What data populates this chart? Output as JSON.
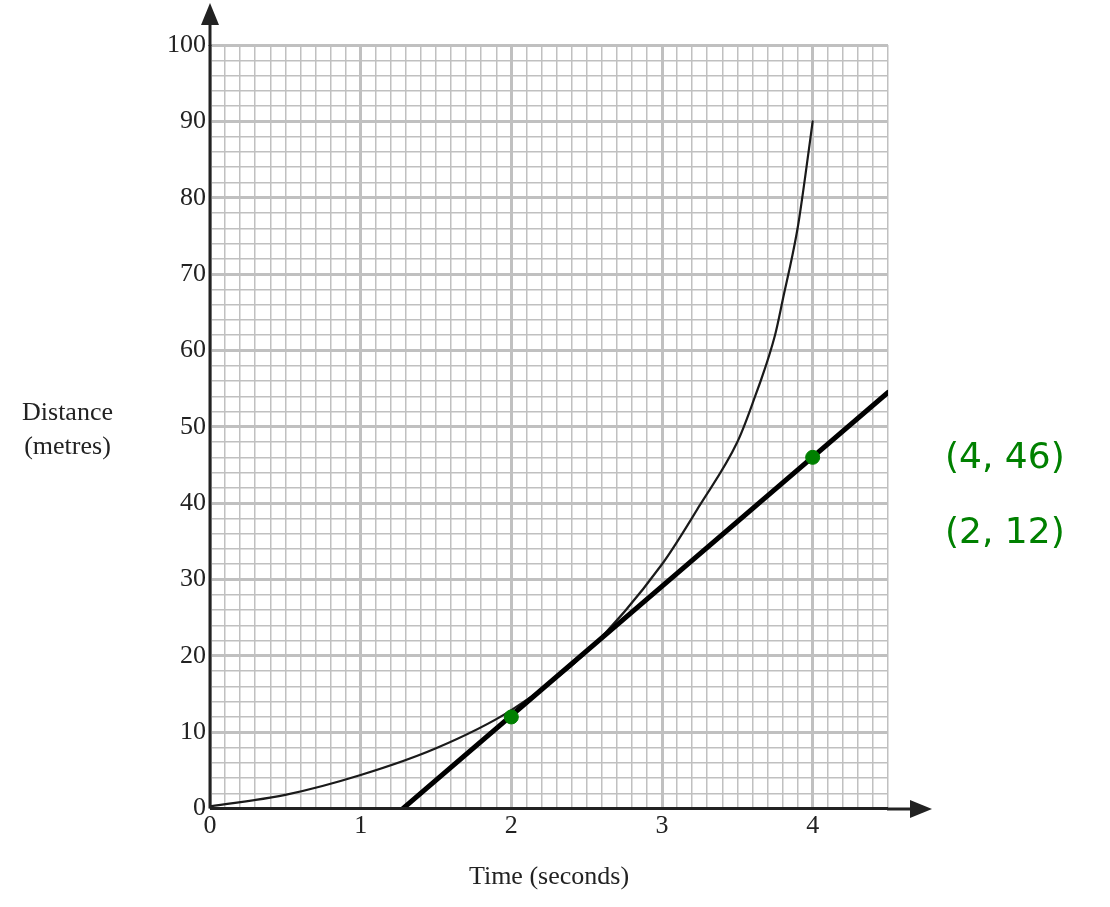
{
  "chart_data": {
    "type": "line",
    "xlabel": "Time (seconds)",
    "ylabel": "Distance (metres)",
    "xlim": [
      0,
      4.5
    ],
    "ylim": [
      0,
      100
    ],
    "xticks": [
      0,
      {
        "value": 0.1,
        "label": null
      },
      {
        "value": 0.2,
        "label": null
      },
      {
        "value": 0.3,
        "label": null
      },
      {
        "value": 0.4,
        "label": null
      },
      {
        "value": 0.5,
        "label": null
      },
      {
        "value": 0.6,
        "label": null
      },
      {
        "value": 0.7,
        "label": null
      },
      {
        "value": 0.8,
        "label": null
      },
      {
        "value": 0.9,
        "label": null
      },
      1,
      {
        "value": 1.1,
        "label": null
      },
      {
        "value": 1.2,
        "label": null
      },
      {
        "value": 1.3,
        "label": null
      },
      {
        "value": 1.4,
        "label": null
      },
      {
        "value": 1.5,
        "label": null
      },
      {
        "value": 1.6,
        "label": null
      },
      {
        "value": 1.7,
        "label": null
      },
      {
        "value": 1.8,
        "label": null
      },
      {
        "value": 1.9,
        "label": null
      },
      2,
      {
        "value": 2.1,
        "label": null
      },
      {
        "value": 2.2,
        "label": null
      },
      {
        "value": 2.3,
        "label": null
      },
      {
        "value": 2.4,
        "label": null
      },
      {
        "value": 2.5,
        "label": null
      },
      {
        "value": 2.6,
        "label": null
      },
      {
        "value": 2.7,
        "label": null
      },
      {
        "value": 2.8,
        "label": null
      },
      {
        "value": 2.9,
        "label": null
      },
      3,
      {
        "value": 3.1,
        "label": null
      },
      {
        "value": 3.2,
        "label": null
      },
      {
        "value": 3.3,
        "label": null
      },
      {
        "value": 3.4,
        "label": null
      },
      {
        "value": 3.5,
        "label": null
      },
      {
        "value": 3.6,
        "label": null
      },
      {
        "value": 3.7,
        "label": null
      },
      {
        "value": 3.8,
        "label": null
      },
      {
        "value": 3.9,
        "label": null
      },
      4,
      {
        "value": 4.1,
        "label": null
      },
      {
        "value": 4.2,
        "label": null
      },
      {
        "value": 4.3,
        "label": null
      },
      {
        "value": 4.4,
        "label": null
      },
      {
        "value": 4.5,
        "label": null
      }
    ],
    "yticks": [
      0,
      {
        "value": 2,
        "label": null
      },
      {
        "value": 4,
        "label": null
      },
      {
        "value": 6,
        "label": null
      },
      {
        "value": 8,
        "label": null
      },
      10,
      {
        "value": 12,
        "label": null
      },
      {
        "value": 14,
        "label": null
      },
      {
        "value": 16,
        "label": null
      },
      {
        "value": 18,
        "label": null
      },
      20,
      {
        "value": 22,
        "label": null
      },
      {
        "value": 24,
        "label": null
      },
      {
        "value": 26,
        "label": null
      },
      {
        "value": 28,
        "label": null
      },
      30,
      {
        "value": 32,
        "label": null
      },
      {
        "value": 34,
        "label": null
      },
      {
        "value": 36,
        "label": null
      },
      {
        "value": 38,
        "label": null
      },
      40,
      {
        "value": 42,
        "label": null
      },
      {
        "value": 44,
        "label": null
      },
      {
        "value": 46,
        "label": null
      },
      {
        "value": 48,
        "label": null
      },
      50,
      {
        "value": 52,
        "label": null
      },
      {
        "value": 54,
        "label": null
      },
      {
        "value": 56,
        "label": null
      },
      {
        "value": 58,
        "label": null
      },
      60,
      {
        "value": 62,
        "label": null
      },
      {
        "value": 64,
        "label": null
      },
      {
        "value": 66,
        "label": null
      },
      {
        "value": 68,
        "label": null
      },
      70,
      {
        "value": 72,
        "label": null
      },
      {
        "value": 74,
        "label": null
      },
      {
        "value": 76,
        "label": null
      },
      {
        "value": 78,
        "label": null
      },
      80,
      {
        "value": 82,
        "label": null
      },
      {
        "value": 84,
        "label": null
      },
      {
        "value": 86,
        "label": null
      },
      {
        "value": 88,
        "label": null
      },
      90,
      {
        "value": 92,
        "label": null
      },
      {
        "value": 94,
        "label": null
      },
      {
        "value": 96,
        "label": null
      },
      {
        "value": 98,
        "label": null
      },
      100
    ],
    "grid": true,
    "series": [
      {
        "color": "#1a1a1a",
        "marker": "none",
        "x": [
          0,
          0.5,
          1,
          1.5,
          2,
          2.5,
          3,
          3.25,
          3.5,
          3.6,
          3.75,
          3.8,
          3.9,
          3.95,
          4
        ],
        "values": [
          0.3,
          1.8,
          4.4,
          7.9,
          12.9,
          20.5,
          32,
          39.7,
          48,
          53,
          62,
          66.5,
          76,
          82.7,
          90
        ]
      },
      {
        "color": "#000000",
        "marker": "none",
        "x": [
          1.28,
          4.5
        ],
        "values": [
          0,
          54.5
        ]
      },
      {
        "type": "scatter",
        "color": "#008000",
        "marker": "circle",
        "x": [
          2,
          4
        ],
        "values": [
          12,
          46
        ]
      }
    ],
    "annotations": [
      "(4, 46)",
      "(2, 12)"
    ]
  }
}
